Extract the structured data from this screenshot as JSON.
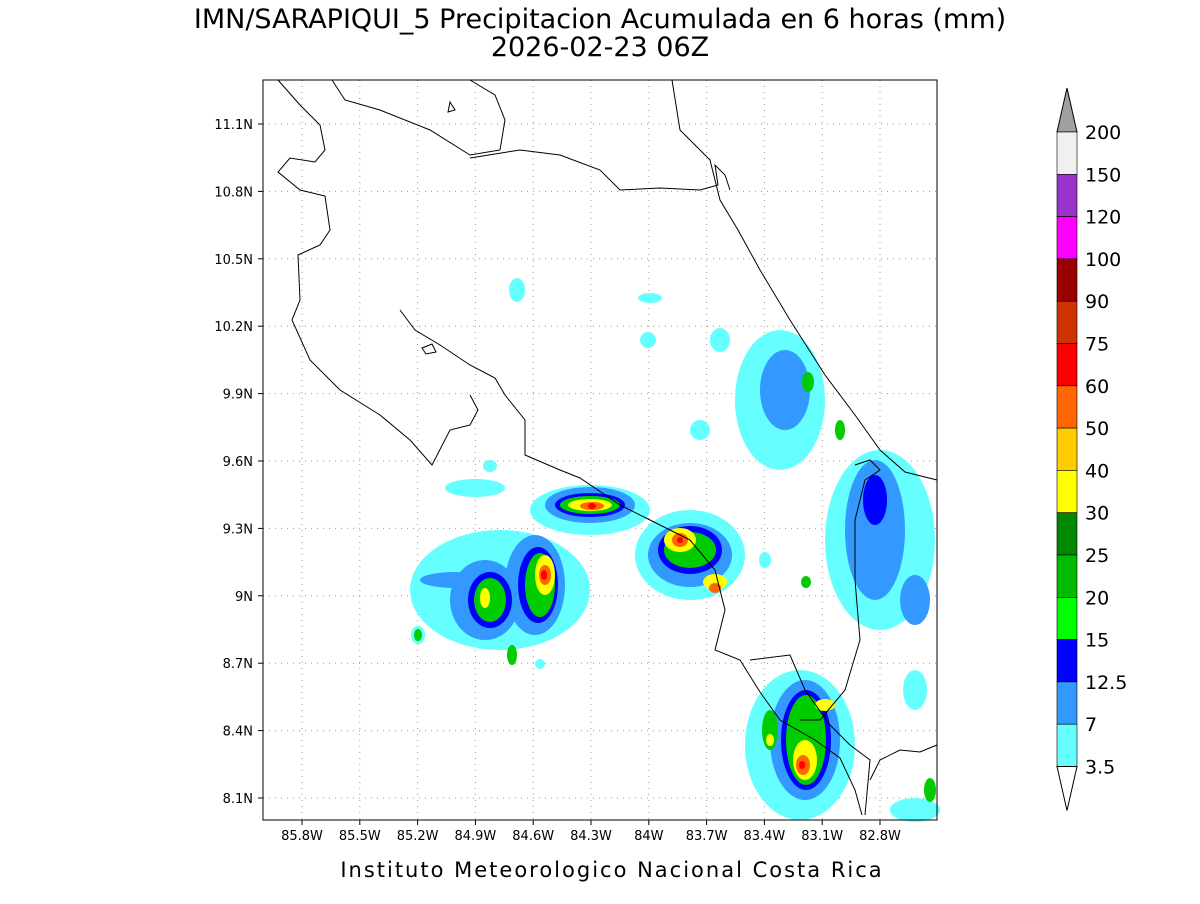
{
  "header": {
    "title": "IMN/SARAPIQUI_5 Precipitacion Acumulada en 6 horas (mm)",
    "subtitle": "2026-02-23 06Z"
  },
  "map": {
    "lat_labels": [
      "11.1N",
      "10.8N",
      "10.5N",
      "10.2N",
      "9.9N",
      "9.6N",
      "9.3N",
      "9N",
      "8.7N",
      "8.4N",
      "8.1N"
    ],
    "lon_labels": [
      "85.8W",
      "85.5W",
      "85.2W",
      "84.9W",
      "84.6W",
      "84.3W",
      "84W",
      "83.7W",
      "83.4W",
      "83.1W",
      "82.8W"
    ]
  },
  "colorbar": {
    "labels": [
      200,
      150,
      120,
      100,
      90,
      75,
      60,
      50,
      40,
      30,
      25,
      20,
      15,
      12.5,
      7,
      3.5
    ],
    "colors": [
      "#a0a0a0",
      "#f0f0f0",
      "#9933cc",
      "#ff00ff",
      "#990000",
      "#cc3300",
      "#ff0000",
      "#ff6600",
      "#ffcc00",
      "#ffff00",
      "#008800",
      "#00bb00",
      "#00ff00",
      "#0000ff",
      "#3399ff",
      "#66ffff",
      "#ffffff"
    ]
  },
  "footer": "Instituto Meteorologico Nacional Costa Rica"
}
